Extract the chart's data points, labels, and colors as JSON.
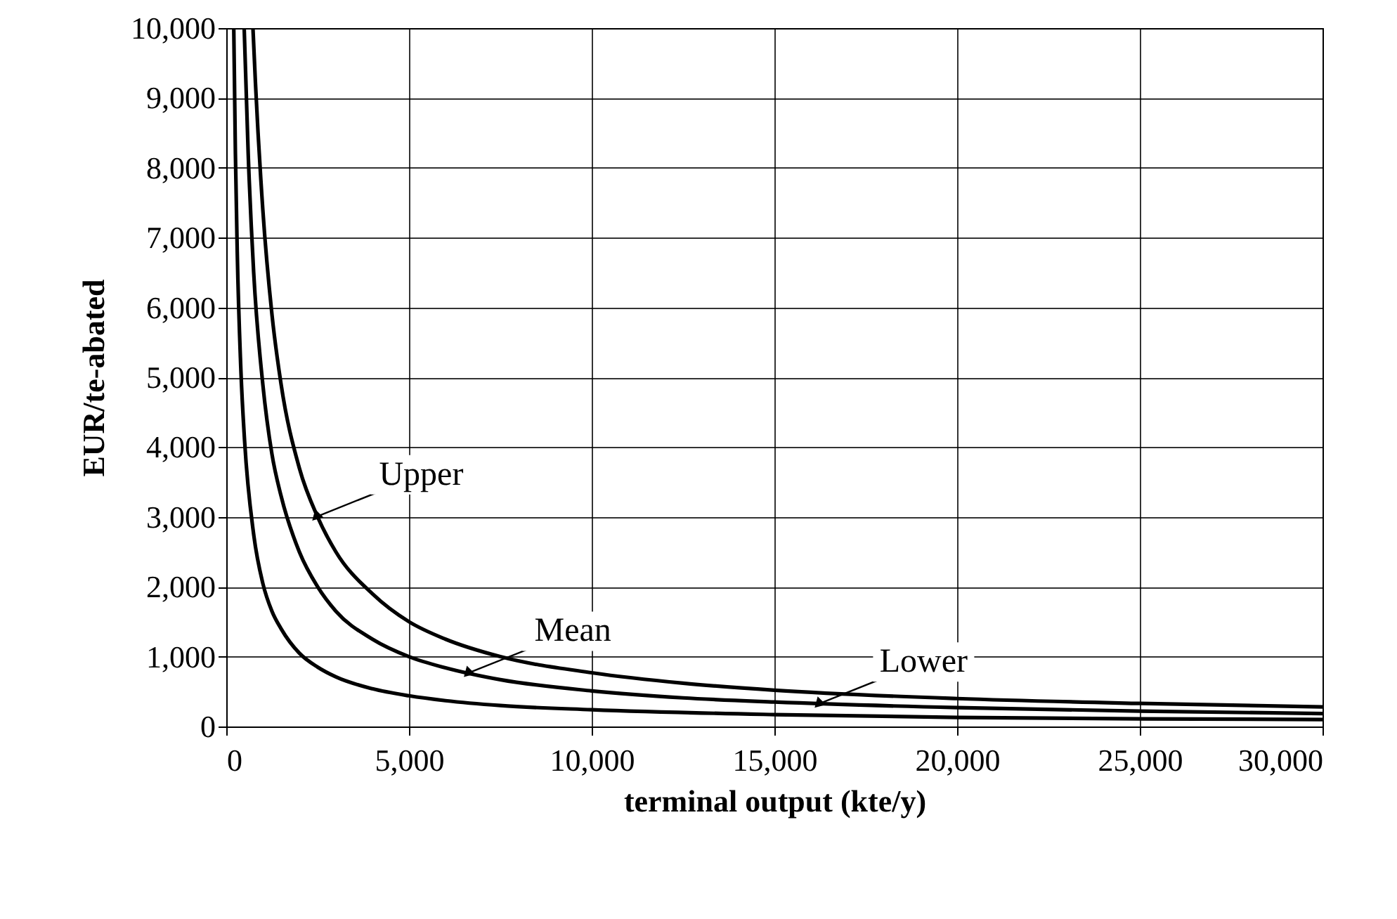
{
  "chart_data": {
    "type": "line",
    "xlabel": "terminal output (kte/y)",
    "ylabel": "EUR/te-abated",
    "xlim": [
      0,
      30000
    ],
    "xticks": [
      {
        "value": 0,
        "label": "0"
      },
      {
        "value": 5000,
        "label": "5,000"
      },
      {
        "value": 10000,
        "label": "10,000"
      },
      {
        "value": 15000,
        "label": "15,000"
      },
      {
        "value": 20000,
        "label": "20,000"
      },
      {
        "value": 25000,
        "label": "25,000"
      },
      {
        "value": 30000,
        "label": "30,000"
      }
    ],
    "ylim": [
      0,
      10000
    ],
    "yticks": [
      {
        "value": 0,
        "label": "0"
      },
      {
        "value": 1000,
        "label": "1,000"
      },
      {
        "value": 2000,
        "label": "2,000"
      },
      {
        "value": 3000,
        "label": "3,000"
      },
      {
        "value": 4000,
        "label": "4,000"
      },
      {
        "value": 5000,
        "label": "5,000"
      },
      {
        "value": 6000,
        "label": "6,000"
      },
      {
        "value": 7000,
        "label": "7,000"
      },
      {
        "value": 8000,
        "label": "8,000"
      },
      {
        "value": 9000,
        "label": "9,000"
      },
      {
        "value": 10000,
        "label": "10,000"
      }
    ],
    "grid": true,
    "legend": false,
    "marker": "none",
    "line_style": "solid",
    "series": [
      {
        "color": "#000000",
        "x": [
          730,
          800,
          1000,
          1250,
          1500,
          2000,
          2500,
          3000,
          4000,
          5000,
          6000,
          7500,
          10000,
          12500,
          15000,
          20000,
          25000,
          30000
        ],
        "values": [
          10000,
          9200,
          7400,
          5900,
          4900,
          3700,
          3000,
          2500,
          1900,
          1500,
          1250,
          1000,
          770,
          620,
          520,
          400,
          330,
          280
        ]
      },
      {
        "color": "#000000",
        "x": [
          490,
          600,
          750,
          1000,
          1250,
          1500,
          2000,
          2500,
          3000,
          4000,
          5000,
          6000,
          7500,
          10000,
          12500,
          15000,
          20000,
          25000,
          30000
        ],
        "values": [
          10000,
          8200,
          6500,
          4900,
          3900,
          3300,
          2500,
          2000,
          1650,
          1250,
          1000,
          840,
          670,
          510,
          410,
          350,
          270,
          220,
          185
        ]
      },
      {
        "color": "#000000",
        "x": [
          205,
          250,
          300,
          400,
          500,
          750,
          1000,
          1250,
          1500,
          2000,
          2500,
          3000,
          4000,
          5000,
          6000,
          7500,
          10000,
          15000,
          20000,
          25000,
          30000
        ],
        "values": [
          10000,
          8200,
          6800,
          5100,
          4100,
          2750,
          2050,
          1650,
          1400,
          1050,
          850,
          710,
          540,
          440,
          370,
          300,
          240,
          170,
          130,
          110,
          100
        ]
      }
    ],
    "annotations": [
      {
        "text": "Upper",
        "x": 2450,
        "y": 3000
      },
      {
        "text": "Mean",
        "x": 6600,
        "y": 760
      },
      {
        "text": "Lower",
        "x": 16200,
        "y": 320
      }
    ]
  }
}
